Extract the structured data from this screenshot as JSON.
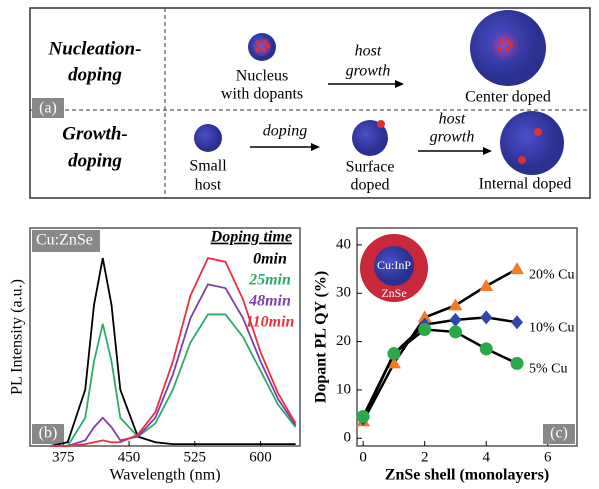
{
  "diagram": {
    "panel_label": "(a)",
    "rows": [
      {
        "label": [
          "Nucleation-",
          "doping"
        ],
        "steps": [
          [
            "Nucleus",
            "with dopants"
          ],
          [
            "host",
            "growth"
          ],
          [
            "Center doped"
          ]
        ]
      },
      {
        "label": [
          "Growth-",
          "doping"
        ],
        "steps": [
          [
            "Small",
            "host"
          ],
          [
            "doping"
          ],
          [
            "Surface",
            "doped"
          ],
          [
            "host",
            "growth"
          ],
          [
            "Internal doped"
          ]
        ]
      }
    ]
  },
  "chart_data": [
    {
      "type": "line",
      "panel_label": "(b)",
      "annotation": "Cu:ZnSe",
      "x_label": "Wavelength (nm)",
      "y_label": "PL Intensity (a.u.)",
      "x": [
        360,
        380,
        400,
        410,
        420,
        430,
        440,
        460,
        480,
        500,
        520,
        540,
        560,
        580,
        600,
        620,
        640
      ],
      "xlim": [
        337,
        645
      ],
      "xticks": [
        375,
        450,
        525,
        600
      ],
      "ylim": [
        0,
        1.16
      ],
      "legend_title": "Doping time",
      "legend": "top-right",
      "series": [
        {
          "name": "0min",
          "color": "#000000",
          "values": [
            0,
            0.02,
            0.3,
            0.75,
            1.0,
            0.75,
            0.3,
            0.05,
            0.02,
            0.01,
            0.01,
            0.01,
            0.01,
            0.01,
            0.01,
            0.01,
            0.01
          ]
        },
        {
          "name": "25min",
          "color": "#2eaa6a",
          "values": [
            0,
            0,
            0.15,
            0.45,
            0.65,
            0.45,
            0.15,
            0.05,
            0.12,
            0.3,
            0.55,
            0.7,
            0.7,
            0.58,
            0.4,
            0.22,
            0.1
          ]
        },
        {
          "name": "48min",
          "color": "#7a3fb0",
          "values": [
            0,
            0,
            0.03,
            0.1,
            0.15,
            0.1,
            0.03,
            0.05,
            0.15,
            0.38,
            0.68,
            0.86,
            0.84,
            0.68,
            0.45,
            0.25,
            0.11
          ]
        },
        {
          "name": "110min",
          "color": "#e8323c",
          "values": [
            0,
            0,
            0.01,
            0.02,
            0.03,
            0.02,
            0.02,
            0.06,
            0.18,
            0.45,
            0.8,
            1.0,
            0.98,
            0.78,
            0.5,
            0.28,
            0.12
          ]
        }
      ]
    },
    {
      "type": "line",
      "panel_label": "(c)",
      "x_label": "ZnSe shell (monolayers)",
      "y_label": "Dopant PL QY (%)",
      "inset_labels": [
        "Cu:InP",
        "ZnSe"
      ],
      "x": [
        0,
        1,
        2,
        3,
        4,
        5
      ],
      "xlim": [
        -0.2,
        6.95
      ],
      "xticks": [
        0,
        2,
        4,
        6
      ],
      "ylim": [
        -1.6,
        43.5
      ],
      "yticks": [
        0,
        10,
        20,
        30,
        40
      ],
      "line_color": "#000000",
      "series": [
        {
          "name": "20% Cu",
          "color": "#f07c2a",
          "marker": "triangle",
          "values": [
            3.5,
            15.5,
            25,
            27.5,
            31.5,
            35
          ]
        },
        {
          "name": "10% Cu",
          "color": "#3344aa",
          "marker": "diamond",
          "values": [
            4,
            17.5,
            23.5,
            24.5,
            25,
            24
          ]
        },
        {
          "name": "5% Cu",
          "color": "#2aa84a",
          "marker": "circle",
          "values": [
            4.5,
            17.5,
            22.5,
            22,
            18.5,
            15.5
          ]
        }
      ]
    }
  ]
}
